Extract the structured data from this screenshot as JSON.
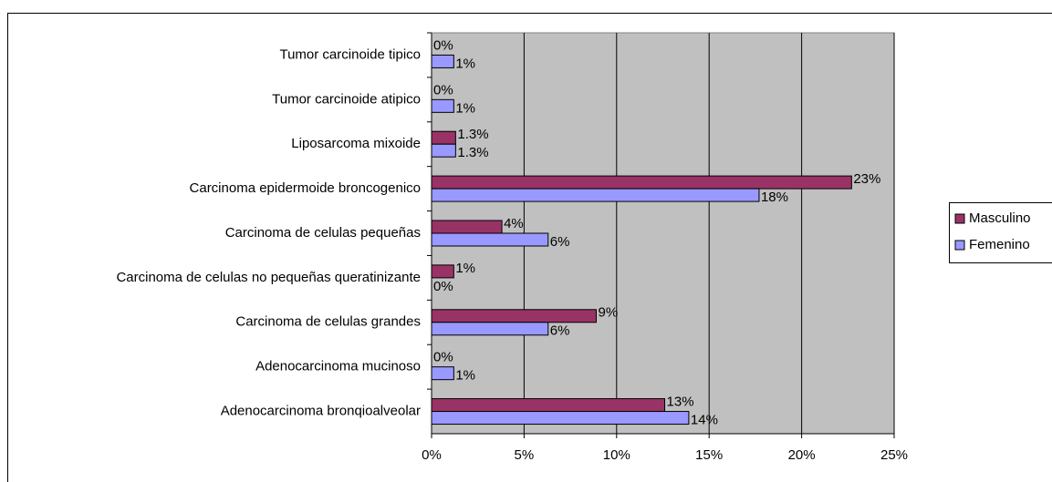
{
  "chart_data": {
    "type": "hbar",
    "categories": [
      "Tumor carcinoide tipico",
      "Tumor carcinoide atipico",
      "Liposarcoma mixoide",
      "Carcinoma epidermoide broncogenico",
      "Carcinoma de celulas pequeñas",
      "Carcinoma de celulas no pequeñas queratinizante",
      "Carcinoma de celulas grandes",
      "Adenocarcinoma mucinoso",
      "Adenocarcinoma bronqioalveolar"
    ],
    "series": [
      {
        "name": "Masculino",
        "color": "#993366",
        "values": [
          0,
          0,
          1.3,
          22.7,
          3.8,
          1.2,
          8.9,
          0,
          12.6
        ],
        "value_labels": [
          "0%",
          "0%",
          "1.3%",
          "23%",
          "4%",
          "1%",
          "9%",
          "0%",
          "13%"
        ]
      },
      {
        "name": "Femenino",
        "color": "#9999ff",
        "values": [
          1.2,
          1.2,
          1.3,
          17.7,
          6.3,
          0,
          6.3,
          1.2,
          13.9
        ],
        "value_labels": [
          "1%",
          "1%",
          "1.3%",
          "18%",
          "6%",
          "0%",
          "6%",
          "1%",
          "14%"
        ]
      }
    ],
    "xlim": [
      0,
      25
    ],
    "xticks": [
      {
        "value": 0,
        "label": "0%"
      },
      {
        "value": 5,
        "label": "5%"
      },
      {
        "value": 10,
        "label": "10%"
      },
      {
        "value": 15,
        "label": "15%"
      },
      {
        "value": 20,
        "label": "20%"
      },
      {
        "value": 25,
        "label": "25%"
      }
    ],
    "grid": true,
    "legend": "right",
    "plot_background": "#c0c0c0"
  }
}
